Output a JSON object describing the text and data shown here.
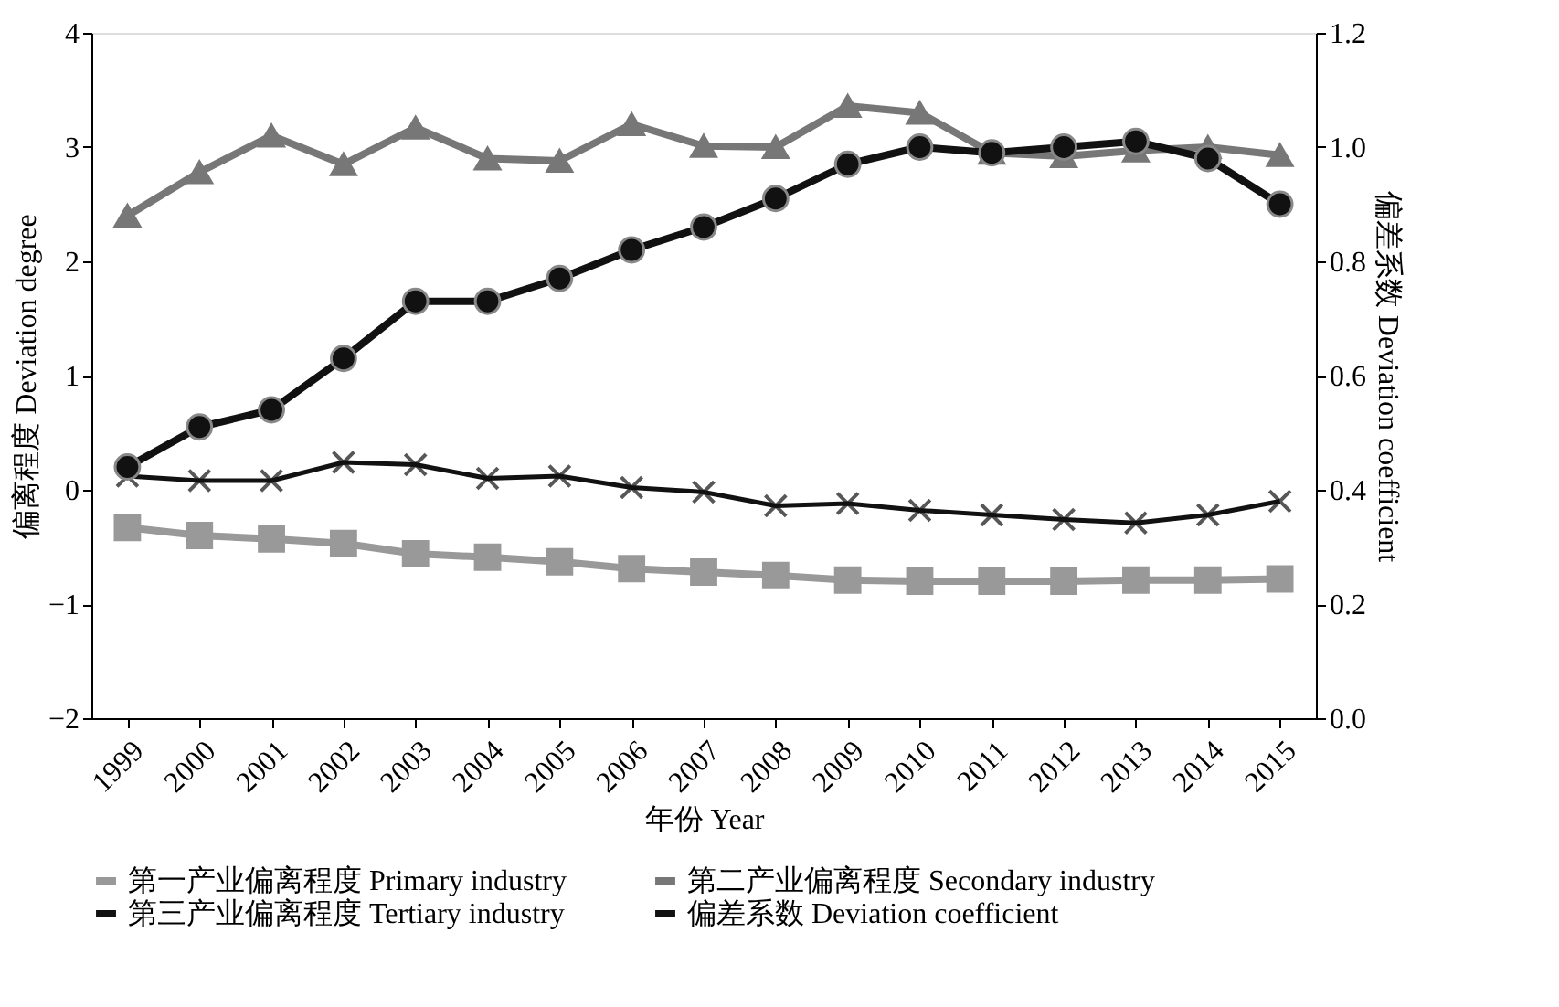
{
  "chart_data": {
    "type": "line",
    "xlabel": "年份 Year",
    "ylabel": "偏离程度 Deviation degree",
    "y2label": "偏差系数 Deviation coefficient",
    "categories": [
      "1999",
      "2000",
      "2001",
      "2002",
      "2003",
      "2004",
      "2005",
      "2006",
      "2007",
      "2008",
      "2009",
      "2010",
      "2011",
      "2012",
      "2013",
      "2014",
      "2015"
    ],
    "series": [
      {
        "name": "第一产业偏离程度 Primary industry",
        "color": "#999999",
        "marker": "square",
        "values": [
          -0.33,
          -0.4,
          -0.43,
          -0.47,
          -0.56,
          -0.59,
          -0.63,
          -0.69,
          -0.72,
          -0.75,
          -0.79,
          -0.8,
          -0.8,
          -0.8,
          -0.79,
          -0.79,
          -0.78
        ]
      },
      {
        "name": "第二产业偏离程度 Secondary industry",
        "color": "#777777",
        "marker": "triangle",
        "values": [
          2.4,
          2.78,
          3.1,
          2.85,
          3.17,
          2.9,
          2.88,
          3.2,
          3.01,
          3.0,
          3.36,
          3.3,
          2.95,
          2.92,
          2.97,
          3.0,
          2.93
        ]
      },
      {
        "name": "第三产业偏离程度 Tertiary industry",
        "color": "#111111",
        "marker": "cross",
        "values": [
          0.12,
          0.08,
          0.08,
          0.24,
          0.22,
          0.1,
          0.12,
          0.02,
          -0.02,
          -0.14,
          -0.12,
          -0.18,
          -0.22,
          -0.26,
          -0.29,
          -0.22,
          -0.1
        ]
      },
      {
        "name": "偏差系数 Deviation coefficient",
        "color": "#111111",
        "marker": "circle",
        "axis": "y2",
        "values": [
          0.44,
          0.51,
          0.54,
          0.63,
          0.73,
          0.73,
          0.77,
          0.82,
          0.86,
          0.91,
          0.97,
          1.0,
          0.99,
          1.0,
          1.01,
          0.98,
          0.9
        ]
      }
    ],
    "ylim": [
      -2,
      4
    ],
    "yticks": [
      -2,
      -1,
      0,
      1,
      2,
      3,
      4
    ],
    "y2lim": [
      0,
      1.2
    ],
    "y2ticks": [
      {
        "value": 0,
        "label": "0.0"
      },
      0.2,
      0.4,
      0.6,
      0.8,
      {
        "value": 1,
        "label": "1.0"
      },
      1.2
    ],
    "grid": false,
    "legend": "bottom"
  }
}
